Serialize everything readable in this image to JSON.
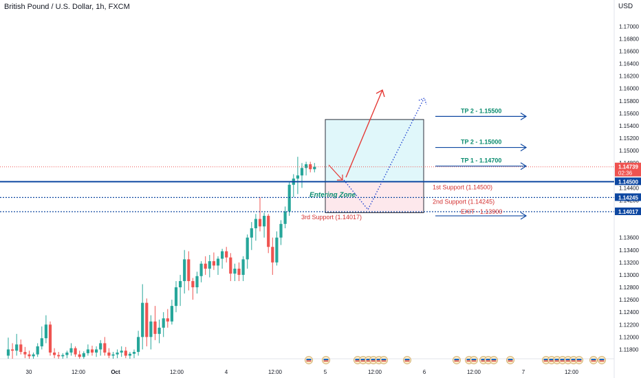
{
  "title": "British Pound / U.S. Dollar, 1h, FXCM",
  "currency": "USD",
  "colors": {
    "up": "#26a69a",
    "down": "#ef5350",
    "blue": "#0d47a1",
    "zoneTop": "#e0f7fa",
    "zoneBottom": "#fde8ec",
    "current": "#ef5350"
  },
  "chart_data": {
    "type": "candlestick",
    "ylim": [
      1.1165,
      1.1718
    ],
    "y_ticks": [
      "1.11800",
      "1.12000",
      "1.12200",
      "1.12400",
      "1.12600",
      "1.12800",
      "1.13000",
      "1.13200",
      "1.13400",
      "1.13600",
      "1.14000",
      "1.14200",
      "1.14400",
      "1.14800",
      "1.15000",
      "1.15200",
      "1.15400",
      "1.15600",
      "1.15800",
      "1.16000",
      "1.16200",
      "1.16400",
      "1.16600",
      "1.16800",
      "1.17000"
    ],
    "x_ticks": [
      "30",
      "12:00",
      "Oct",
      "12:00",
      "4",
      "12:00",
      "5",
      "12:00",
      "6",
      "12:00",
      "7",
      "12:00"
    ],
    "current_price": {
      "value": 1.14739,
      "label": "1.14739",
      "countdown": "02:36"
    },
    "price_labels": [
      {
        "value": 1.145,
        "label": "1.14500"
      },
      {
        "value": 1.14245,
        "label": "1.14245"
      },
      {
        "value": 1.14017,
        "label": "1.14017"
      }
    ],
    "levels": [
      {
        "value": 1.145,
        "style": "solid",
        "label": "1st Support (1.14500)"
      },
      {
        "value": 1.14245,
        "style": "dotted",
        "label": "2nd Support (1.14245)"
      },
      {
        "value": 1.14017,
        "style": "dotted",
        "label": "3rd Support (1.14017)"
      }
    ],
    "targets": [
      {
        "value": 1.1555,
        "label": "TP 2 - 1.15500",
        "color": "#0a8c6f"
      },
      {
        "value": 1.1505,
        "label": "TP 2 - 1.15000",
        "color": "#0a8c6f"
      },
      {
        "value": 1.1475,
        "label": "TP 1 - 1.14700",
        "color": "#0a8c6f"
      },
      {
        "value": 1.1395,
        "label": "EXIT - 1.13900",
        "color": "#d32f2f"
      }
    ],
    "zone": {
      "label": "Entering Zone",
      "top": 1.155,
      "mid": 1.145,
      "bottom": 1.14
    },
    "candles": [
      {
        "o": 1.117,
        "h": 1.1199,
        "l": 1.1165,
        "c": 1.118
      },
      {
        "o": 1.118,
        "h": 1.119,
        "l": 1.1165,
        "c": 1.1178
      },
      {
        "o": 1.1178,
        "h": 1.1205,
        "l": 1.117,
        "c": 1.1188
      },
      {
        "o": 1.1188,
        "h": 1.1196,
        "l": 1.1172,
        "c": 1.1176
      },
      {
        "o": 1.1176,
        "h": 1.1184,
        "l": 1.1166,
        "c": 1.1172
      },
      {
        "o": 1.1172,
        "h": 1.1178,
        "l": 1.1165,
        "c": 1.1169
      },
      {
        "o": 1.1169,
        "h": 1.1175,
        "l": 1.1165,
        "c": 1.1172
      },
      {
        "o": 1.1172,
        "h": 1.119,
        "l": 1.1168,
        "c": 1.1185
      },
      {
        "o": 1.1185,
        "h": 1.1217,
        "l": 1.118,
        "c": 1.1198
      },
      {
        "o": 1.1198,
        "h": 1.1235,
        "l": 1.119,
        "c": 1.122
      },
      {
        "o": 1.122,
        "h": 1.1225,
        "l": 1.117,
        "c": 1.1175
      },
      {
        "o": 1.1175,
        "h": 1.1182,
        "l": 1.1166,
        "c": 1.1171
      },
      {
        "o": 1.1171,
        "h": 1.1176,
        "l": 1.1165,
        "c": 1.1169
      },
      {
        "o": 1.1169,
        "h": 1.1174,
        "l": 1.1165,
        "c": 1.1171
      },
      {
        "o": 1.1171,
        "h": 1.1178,
        "l": 1.1166,
        "c": 1.1175
      },
      {
        "o": 1.1175,
        "h": 1.119,
        "l": 1.117,
        "c": 1.1182
      },
      {
        "o": 1.1182,
        "h": 1.1185,
        "l": 1.1168,
        "c": 1.1172
      },
      {
        "o": 1.1172,
        "h": 1.1178,
        "l": 1.1165,
        "c": 1.1168
      },
      {
        "o": 1.1168,
        "h": 1.1177,
        "l": 1.1165,
        "c": 1.1174
      },
      {
        "o": 1.1174,
        "h": 1.1188,
        "l": 1.117,
        "c": 1.118
      },
      {
        "o": 1.118,
        "h": 1.1186,
        "l": 1.117,
        "c": 1.1175
      },
      {
        "o": 1.1175,
        "h": 1.1185,
        "l": 1.1168,
        "c": 1.118
      },
      {
        "o": 1.118,
        "h": 1.1195,
        "l": 1.117,
        "c": 1.119
      },
      {
        "o": 1.119,
        "h": 1.12,
        "l": 1.117,
        "c": 1.1175
      },
      {
        "o": 1.1175,
        "h": 1.1182,
        "l": 1.1166,
        "c": 1.117
      },
      {
        "o": 1.117,
        "h": 1.1176,
        "l": 1.1165,
        "c": 1.1172
      },
      {
        "o": 1.1172,
        "h": 1.118,
        "l": 1.1166,
        "c": 1.1175
      },
      {
        "o": 1.1175,
        "h": 1.1185,
        "l": 1.1168,
        "c": 1.1178
      },
      {
        "o": 1.1178,
        "h": 1.1184,
        "l": 1.1166,
        "c": 1.117
      },
      {
        "o": 1.117,
        "h": 1.1176,
        "l": 1.1165,
        "c": 1.1173
      },
      {
        "o": 1.1173,
        "h": 1.118,
        "l": 1.1166,
        "c": 1.1176
      },
      {
        "o": 1.1176,
        "h": 1.121,
        "l": 1.117,
        "c": 1.12
      },
      {
        "o": 1.12,
        "h": 1.1285,
        "l": 1.118,
        "c": 1.1255
      },
      {
        "o": 1.1255,
        "h": 1.1262,
        "l": 1.1185,
        "c": 1.12
      },
      {
        "o": 1.12,
        "h": 1.1235,
        "l": 1.118,
        "c": 1.1225
      },
      {
        "o": 1.1225,
        "h": 1.125,
        "l": 1.1195,
        "c": 1.1205
      },
      {
        "o": 1.1205,
        "h": 1.1228,
        "l": 1.119,
        "c": 1.1215
      },
      {
        "o": 1.1215,
        "h": 1.124,
        "l": 1.12,
        "c": 1.123
      },
      {
        "o": 1.123,
        "h": 1.1245,
        "l": 1.1215,
        "c": 1.1225
      },
      {
        "o": 1.1225,
        "h": 1.126,
        "l": 1.122,
        "c": 1.125
      },
      {
        "o": 1.125,
        "h": 1.129,
        "l": 1.124,
        "c": 1.128
      },
      {
        "o": 1.128,
        "h": 1.13,
        "l": 1.125,
        "c": 1.129
      },
      {
        "o": 1.129,
        "h": 1.134,
        "l": 1.127,
        "c": 1.1325
      },
      {
        "o": 1.1325,
        "h": 1.1338,
        "l": 1.1275,
        "c": 1.129
      },
      {
        "o": 1.129,
        "h": 1.1295,
        "l": 1.126,
        "c": 1.128
      },
      {
        "o": 1.128,
        "h": 1.1305,
        "l": 1.127,
        "c": 1.1298
      },
      {
        "o": 1.1298,
        "h": 1.1322,
        "l": 1.1288,
        "c": 1.1318
      },
      {
        "o": 1.1318,
        "h": 1.133,
        "l": 1.13,
        "c": 1.131
      },
      {
        "o": 1.131,
        "h": 1.1332,
        "l": 1.1296,
        "c": 1.1322
      },
      {
        "o": 1.1322,
        "h": 1.1336,
        "l": 1.1308,
        "c": 1.1315
      },
      {
        "o": 1.1315,
        "h": 1.133,
        "l": 1.13,
        "c": 1.1326
      },
      {
        "o": 1.1326,
        "h": 1.1342,
        "l": 1.131,
        "c": 1.1338
      },
      {
        "o": 1.1338,
        "h": 1.1345,
        "l": 1.132,
        "c": 1.1328
      },
      {
        "o": 1.1328,
        "h": 1.1335,
        "l": 1.129,
        "c": 1.1302
      },
      {
        "o": 1.1302,
        "h": 1.1318,
        "l": 1.129,
        "c": 1.131
      },
      {
        "o": 1.131,
        "h": 1.132,
        "l": 1.129,
        "c": 1.13
      },
      {
        "o": 1.13,
        "h": 1.133,
        "l": 1.129,
        "c": 1.1325
      },
      {
        "o": 1.1325,
        "h": 1.1365,
        "l": 1.131,
        "c": 1.136
      },
      {
        "o": 1.136,
        "h": 1.1385,
        "l": 1.134,
        "c": 1.1375
      },
      {
        "o": 1.1375,
        "h": 1.1398,
        "l": 1.1355,
        "c": 1.139
      },
      {
        "o": 1.139,
        "h": 1.1425,
        "l": 1.137,
        "c": 1.1378
      },
      {
        "o": 1.1378,
        "h": 1.14,
        "l": 1.136,
        "c": 1.1395
      },
      {
        "o": 1.1395,
        "h": 1.1398,
        "l": 1.1335,
        "c": 1.1345
      },
      {
        "o": 1.1345,
        "h": 1.136,
        "l": 1.13,
        "c": 1.132
      },
      {
        "o": 1.132,
        "h": 1.137,
        "l": 1.1315,
        "c": 1.136
      },
      {
        "o": 1.136,
        "h": 1.1388,
        "l": 1.1348,
        "c": 1.1382
      },
      {
        "o": 1.1382,
        "h": 1.141,
        "l": 1.1375,
        "c": 1.1402
      },
      {
        "o": 1.1402,
        "h": 1.145,
        "l": 1.1395,
        "c": 1.1445
      },
      {
        "o": 1.1445,
        "h": 1.1462,
        "l": 1.1425,
        "c": 1.1455
      },
      {
        "o": 1.1455,
        "h": 1.149,
        "l": 1.143,
        "c": 1.146
      },
      {
        "o": 1.146,
        "h": 1.148,
        "l": 1.144,
        "c": 1.1472
      },
      {
        "o": 1.1472,
        "h": 1.1482,
        "l": 1.146,
        "c": 1.1478
      },
      {
        "o": 1.1478,
        "h": 1.1482,
        "l": 1.1465,
        "c": 1.147
      },
      {
        "o": 1.147,
        "h": 1.148,
        "l": 1.1465,
        "c": 1.14739
      }
    ],
    "events": 20
  }
}
